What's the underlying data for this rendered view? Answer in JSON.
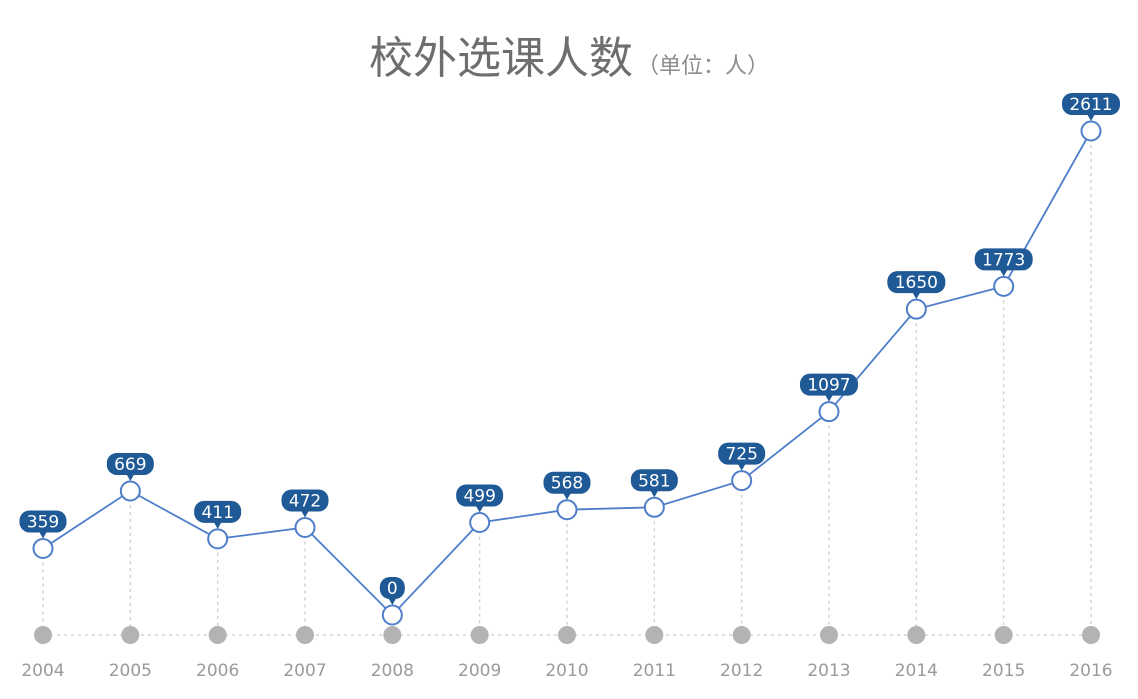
{
  "title": {
    "main": "校外选课人数",
    "unit": "（单位：人）"
  },
  "colors": {
    "line": "#4f7ec9",
    "label_bg": "#1f5996",
    "label_text": "#ffffff",
    "marker_fill": "#ffffff",
    "marker_stroke": "#4f7ec9",
    "dropline": "#c8c8c8",
    "baseline": "#cccccc",
    "base_dot": "#b3b3b3",
    "tick_text": "#9a9a9a",
    "title_text": "#6e6e6e"
  },
  "chart_data": {
    "type": "line",
    "title": "校外选课人数",
    "subtitle": "（单位：人）",
    "xlabel": "",
    "ylabel": "",
    "categories": [
      "2004",
      "2005",
      "2006",
      "2007",
      "2008",
      "2009",
      "2010",
      "2011",
      "2012",
      "2013",
      "2014",
      "2015",
      "2016"
    ],
    "values": [
      359,
      669,
      411,
      472,
      0,
      499,
      568,
      581,
      725,
      1097,
      1650,
      1773,
      2611
    ],
    "ylim": [
      0,
      2611
    ],
    "grid": false,
    "legend": "none",
    "data_labels": true
  }
}
